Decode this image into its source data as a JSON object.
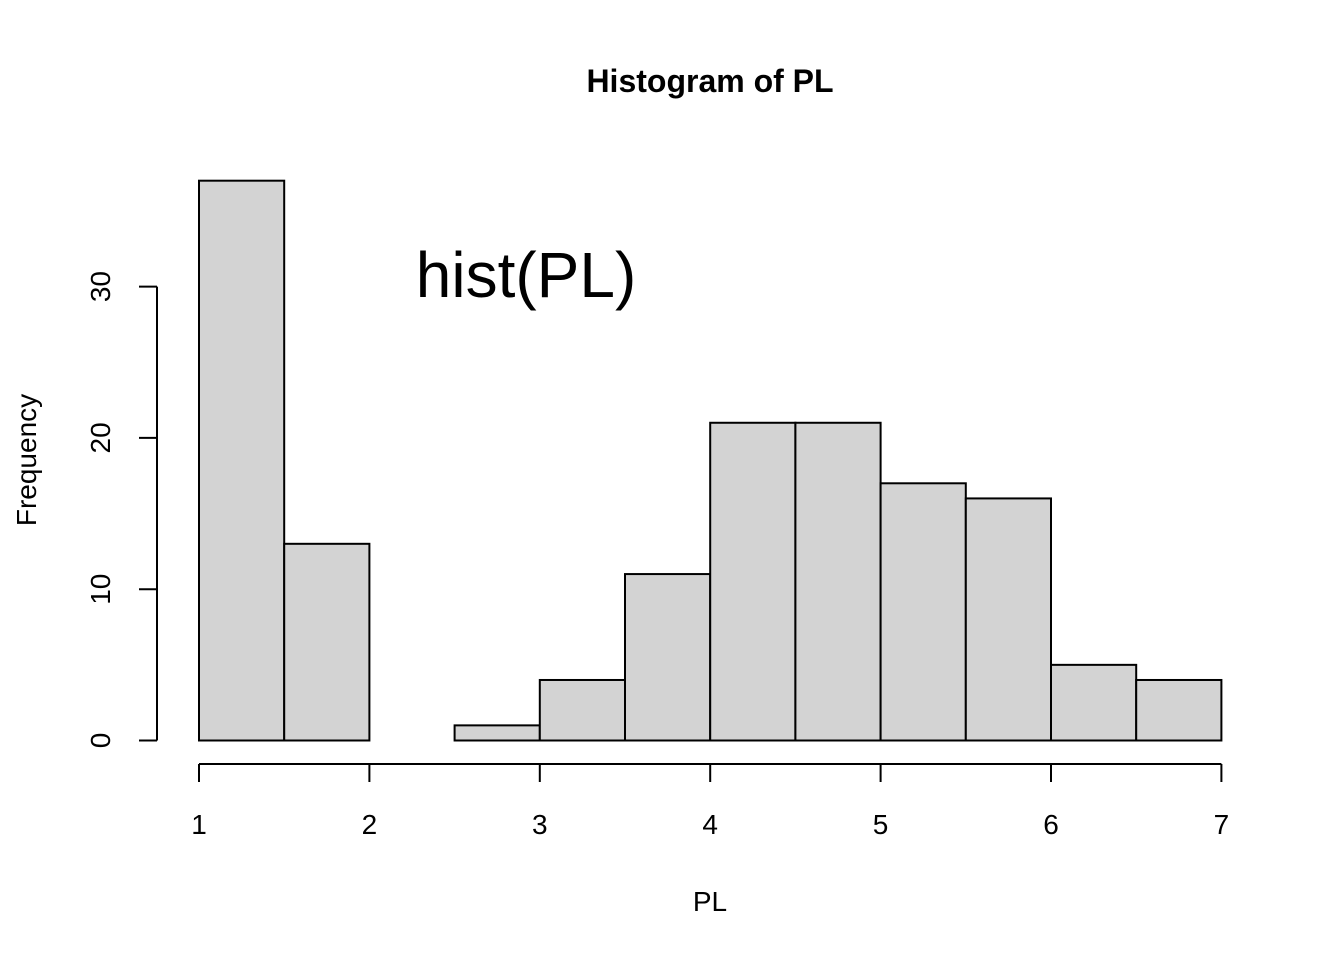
{
  "chart_data": {
    "type": "bar",
    "title": "Histogram of PL",
    "xlabel": "PL",
    "ylabel": "Frequency",
    "annotation": "hist(PL)",
    "bin_edges": [
      1.0,
      1.5,
      2.0,
      2.5,
      3.0,
      3.5,
      4.0,
      4.5,
      5.0,
      5.5,
      6.0,
      6.5,
      7.0
    ],
    "values": [
      37,
      13,
      0,
      1,
      4,
      11,
      21,
      21,
      17,
      16,
      5,
      4
    ],
    "xlim": [
      1,
      7
    ],
    "ylim": [
      0,
      37
    ],
    "x_ticks": [
      "1",
      "2",
      "3",
      "4",
      "5",
      "6",
      "7"
    ],
    "y_ticks": [
      "0",
      "10",
      "20",
      "30"
    ],
    "bar_fill": "#d3d3d3",
    "bar_stroke": "#000000",
    "grid": false
  }
}
